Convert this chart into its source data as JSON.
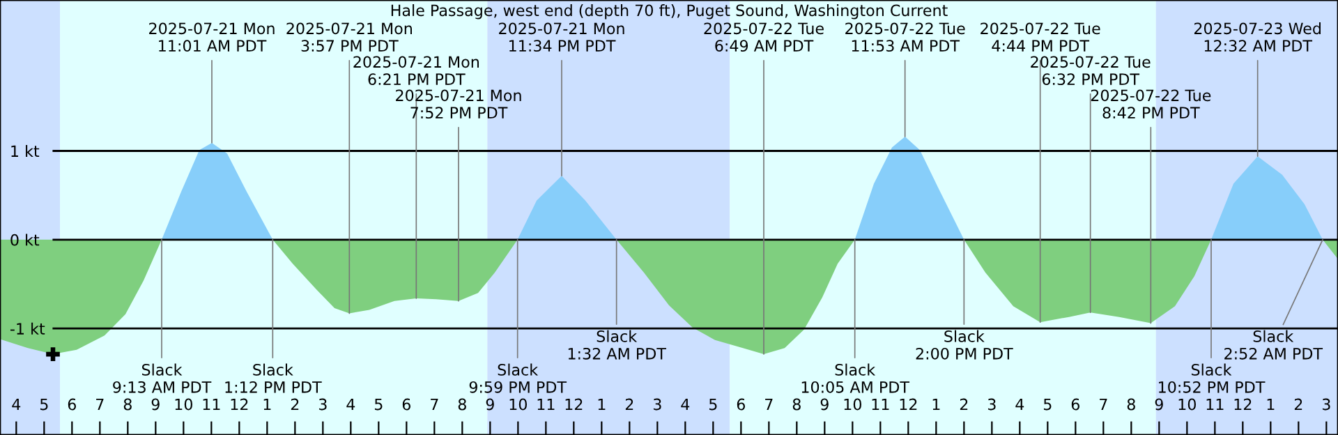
{
  "chart_data": {
    "type": "area",
    "title": "Hale Passage, west end (depth 70 ft), Puget Sound, Washington Current",
    "series": [
      {
        "color": "#7fcf7f",
        "x": [
          "2025-07-21T03:25",
          "2025-07-21T04:25",
          "2025-07-21T05:19",
          "2025-07-21T06:10",
          "2025-07-21T07:10",
          "2025-07-21T07:55",
          "2025-07-21T08:34",
          "2025-07-21T09:13",
          "2025-07-21T13:12",
          "2025-07-21T13:55",
          "2025-07-21T14:46",
          "2025-07-21T15:25",
          "2025-07-21T15:57",
          "2025-07-21T16:40",
          "2025-07-21T17:34",
          "2025-07-21T18:21",
          "2025-07-21T19:04",
          "2025-07-21T19:52",
          "2025-07-21T20:34",
          "2025-07-21T21:10",
          "2025-07-21T21:59",
          "2025-07-22T01:32",
          "2025-07-22T02:31",
          "2025-07-22T03:25",
          "2025-07-22T04:16",
          "2025-07-22T05:04",
          "2025-07-22T06:04",
          "2025-07-22T06:49",
          "2025-07-22T07:34",
          "2025-07-22T08:16",
          "2025-07-22T08:55",
          "2025-07-22T09:28",
          "2025-07-22T10:05",
          "2025-07-22T14:00",
          "2025-07-22T14:46",
          "2025-07-22T15:46",
          "2025-07-22T16:44",
          "2025-07-22T17:46",
          "2025-07-22T18:32",
          "2025-07-22T19:34",
          "2025-07-22T20:42",
          "2025-07-22T21:34",
          "2025-07-22T22:16",
          "2025-07-22T22:52",
          "2025-07-23T02:52",
          "2025-07-23T03:25"
        ],
        "values": [
          -1.12,
          -1.22,
          -1.29,
          -1.24,
          -1.08,
          -0.84,
          -0.46,
          0,
          0,
          -0.27,
          -0.56,
          -0.77,
          -0.83,
          -0.79,
          -0.69,
          -0.66,
          -0.67,
          -0.69,
          -0.6,
          -0.37,
          0,
          0,
          -0.37,
          -0.74,
          -0.99,
          -1.13,
          -1.22,
          -1.29,
          -1.22,
          -1.01,
          -0.65,
          -0.27,
          0,
          0,
          -0.37,
          -0.75,
          -0.93,
          -0.87,
          -0.82,
          -0.87,
          -0.94,
          -0.75,
          -0.41,
          0,
          0,
          -0.22
        ]
      },
      {
        "color": "#87cefa",
        "x": [
          "2025-07-21T09:13",
          "2025-07-21T09:55",
          "2025-07-21T10:34",
          "2025-07-21T11:01",
          "2025-07-21T11:34",
          "2025-07-21T12:16",
          "2025-07-21T13:12",
          "2025-07-21T21:59",
          "2025-07-21T22:40",
          "2025-07-21T23:34",
          "2025-07-22T00:25",
          "2025-07-22T01:32",
          "2025-07-22T10:05",
          "2025-07-22T10:46",
          "2025-07-22T11:25",
          "2025-07-22T11:53",
          "2025-07-22T12:25",
          "2025-07-22T13:04",
          "2025-07-22T14:00",
          "2025-07-22T22:52",
          "2025-07-22T23:40",
          "2025-07-23T00:32",
          "2025-07-23T01:25",
          "2025-07-23T02:13",
          "2025-07-23T02:52"
        ],
        "values": [
          0,
          0.54,
          1.01,
          1.09,
          0.97,
          0.54,
          0,
          0,
          0.44,
          0.72,
          0.44,
          0,
          0,
          0.63,
          1.04,
          1.16,
          1.01,
          0.59,
          0,
          0,
          0.63,
          0.94,
          0.73,
          0.4,
          0
        ]
      },
      {
        "type": "scatter",
        "color": "#000000",
        "marker": "cross",
        "x": [
          "2025-07-21T05:19"
        ],
        "values": [
          -1.29
        ]
      }
    ],
    "xlim": [
      "2025-07-21T03:25",
      "2025-07-23T03:25"
    ],
    "xticks": [
      {
        "value": "2025-07-21T04:00",
        "label": "4"
      },
      {
        "value": "2025-07-21T05:00",
        "label": "5"
      },
      {
        "value": "2025-07-21T06:00",
        "label": "6"
      },
      {
        "value": "2025-07-21T07:00",
        "label": "7"
      },
      {
        "value": "2025-07-21T08:00",
        "label": "8"
      },
      {
        "value": "2025-07-21T09:00",
        "label": "9"
      },
      {
        "value": "2025-07-21T10:00",
        "label": "10"
      },
      {
        "value": "2025-07-21T11:00",
        "label": "11"
      },
      {
        "value": "2025-07-21T12:00",
        "label": "12"
      },
      {
        "value": "2025-07-21T13:00",
        "label": "1"
      },
      {
        "value": "2025-07-21T14:00",
        "label": "2"
      },
      {
        "value": "2025-07-21T15:00",
        "label": "3"
      },
      {
        "value": "2025-07-21T16:00",
        "label": "4"
      },
      {
        "value": "2025-07-21T17:00",
        "label": "5"
      },
      {
        "value": "2025-07-21T18:00",
        "label": "6"
      },
      {
        "value": "2025-07-21T19:00",
        "label": "7"
      },
      {
        "value": "2025-07-21T20:00",
        "label": "8"
      },
      {
        "value": "2025-07-21T21:00",
        "label": "9"
      },
      {
        "value": "2025-07-21T22:00",
        "label": "10"
      },
      {
        "value": "2025-07-21T23:00",
        "label": "11"
      },
      {
        "value": "2025-07-22T00:00",
        "label": "12"
      },
      {
        "value": "2025-07-22T01:00",
        "label": "1"
      },
      {
        "value": "2025-07-22T02:00",
        "label": "2"
      },
      {
        "value": "2025-07-22T03:00",
        "label": "3"
      },
      {
        "value": "2025-07-22T04:00",
        "label": "4"
      },
      {
        "value": "2025-07-22T05:00",
        "label": "5"
      },
      {
        "value": "2025-07-22T06:00",
        "label": "6"
      },
      {
        "value": "2025-07-22T07:00",
        "label": "7"
      },
      {
        "value": "2025-07-22T08:00",
        "label": "8"
      },
      {
        "value": "2025-07-22T09:00",
        "label": "9"
      },
      {
        "value": "2025-07-22T10:00",
        "label": "10"
      },
      {
        "value": "2025-07-22T11:00",
        "label": "11"
      },
      {
        "value": "2025-07-22T12:00",
        "label": "12"
      },
      {
        "value": "2025-07-22T13:00",
        "label": "1"
      },
      {
        "value": "2025-07-22T14:00",
        "label": "2"
      },
      {
        "value": "2025-07-22T15:00",
        "label": "3"
      },
      {
        "value": "2025-07-22T16:00",
        "label": "4"
      },
      {
        "value": "2025-07-22T17:00",
        "label": "5"
      },
      {
        "value": "2025-07-22T18:00",
        "label": "6"
      },
      {
        "value": "2025-07-22T19:00",
        "label": "7"
      },
      {
        "value": "2025-07-22T20:00",
        "label": "8"
      },
      {
        "value": "2025-07-22T21:00",
        "label": "9"
      },
      {
        "value": "2025-07-22T22:00",
        "label": "10"
      },
      {
        "value": "2025-07-22T23:00",
        "label": "11"
      },
      {
        "value": "2025-07-23T00:00",
        "label": "12"
      },
      {
        "value": "2025-07-23T01:00",
        "label": "1"
      },
      {
        "value": "2025-07-23T02:00",
        "label": "2"
      },
      {
        "value": "2025-07-23T03:00",
        "label": "3"
      }
    ],
    "ylim": [
      -2.2,
      2.7
    ],
    "yticks": [
      {
        "value": -1,
        "label": "-1 kt"
      },
      {
        "value": 0,
        "label": "0 kt"
      },
      {
        "value": 1,
        "label": "1 kt"
      }
    ],
    "grid": "y",
    "bands": [
      {
        "axis": "x",
        "from": "2025-07-21T03:25",
        "to": "2025-07-21T05:34",
        "color": "#cce0ff"
      },
      {
        "axis": "x",
        "from": "2025-07-21T05:34",
        "to": "2025-07-21T20:54",
        "color": "#e0ffff"
      },
      {
        "axis": "x",
        "from": "2025-07-21T20:54",
        "to": "2025-07-22T05:36",
        "color": "#cce0ff"
      },
      {
        "axis": "x",
        "from": "2025-07-22T05:36",
        "to": "2025-07-22T20:53",
        "color": "#e0ffff"
      },
      {
        "axis": "x",
        "from": "2025-07-22T20:53",
        "to": "2025-07-23T03:25",
        "color": "#cce0ff"
      }
    ],
    "annotations": [
      {
        "text": "2025-07-21 Mon\n11:01 AM PDT",
        "x": "2025-07-21T11:01",
        "y": 1.09
      },
      {
        "text": "2025-07-21 Mon\n3:57 PM PDT",
        "x": "2025-07-21T15:57",
        "y": -0.83
      },
      {
        "text": "2025-07-21 Mon\n6:21 PM PDT",
        "x": "2025-07-21T18:21",
        "y": -0.66
      },
      {
        "text": "2025-07-21 Mon\n7:52 PM PDT",
        "x": "2025-07-21T19:52",
        "y": -0.69
      },
      {
        "text": "2025-07-21 Mon\n11:34 PM PDT",
        "x": "2025-07-21T23:34",
        "y": 0.72
      },
      {
        "text": "2025-07-22 Tue\n6:49 AM PDT",
        "x": "2025-07-22T06:49",
        "y": -1.29
      },
      {
        "text": "2025-07-22 Tue\n11:53 AM PDT",
        "x": "2025-07-22T11:53",
        "y": 1.16
      },
      {
        "text": "2025-07-22 Tue\n4:44 PM PDT",
        "x": "2025-07-22T16:44",
        "y": -0.93
      },
      {
        "text": "2025-07-22 Tue\n6:32 PM PDT",
        "x": "2025-07-22T18:32",
        "y": -0.82
      },
      {
        "text": "2025-07-22 Tue\n8:42 PM PDT",
        "x": "2025-07-22T20:42",
        "y": -0.94
      },
      {
        "text": "2025-07-23 Wed\n12:32 AM PDT",
        "x": "2025-07-23T00:32",
        "y": 0.94
      },
      {
        "text": "Slack\n9:13 AM PDT",
        "x": "2025-07-21T09:13",
        "y": 0
      },
      {
        "text": "Slack\n1:12 PM PDT",
        "x": "2025-07-21T13:12",
        "y": 0
      },
      {
        "text": "Slack\n9:59 PM PDT",
        "x": "2025-07-21T21:59",
        "y": 0
      },
      {
        "text": "Slack\n1:32 AM PDT",
        "x": "2025-07-22T01:32",
        "y": 0
      },
      {
        "text": "Slack\n10:05 AM PDT",
        "x": "2025-07-22T10:05",
        "y": 0
      },
      {
        "text": "Slack\n2:00 PM PDT",
        "x": "2025-07-22T14:00",
        "y": 0
      },
      {
        "text": "Slack\n10:52 PM PDT",
        "x": "2025-07-22T22:52",
        "y": 0
      },
      {
        "text": "Slack\n2:52 AM PDT",
        "x": "2025-07-23T02:52",
        "y": 0
      }
    ]
  }
}
